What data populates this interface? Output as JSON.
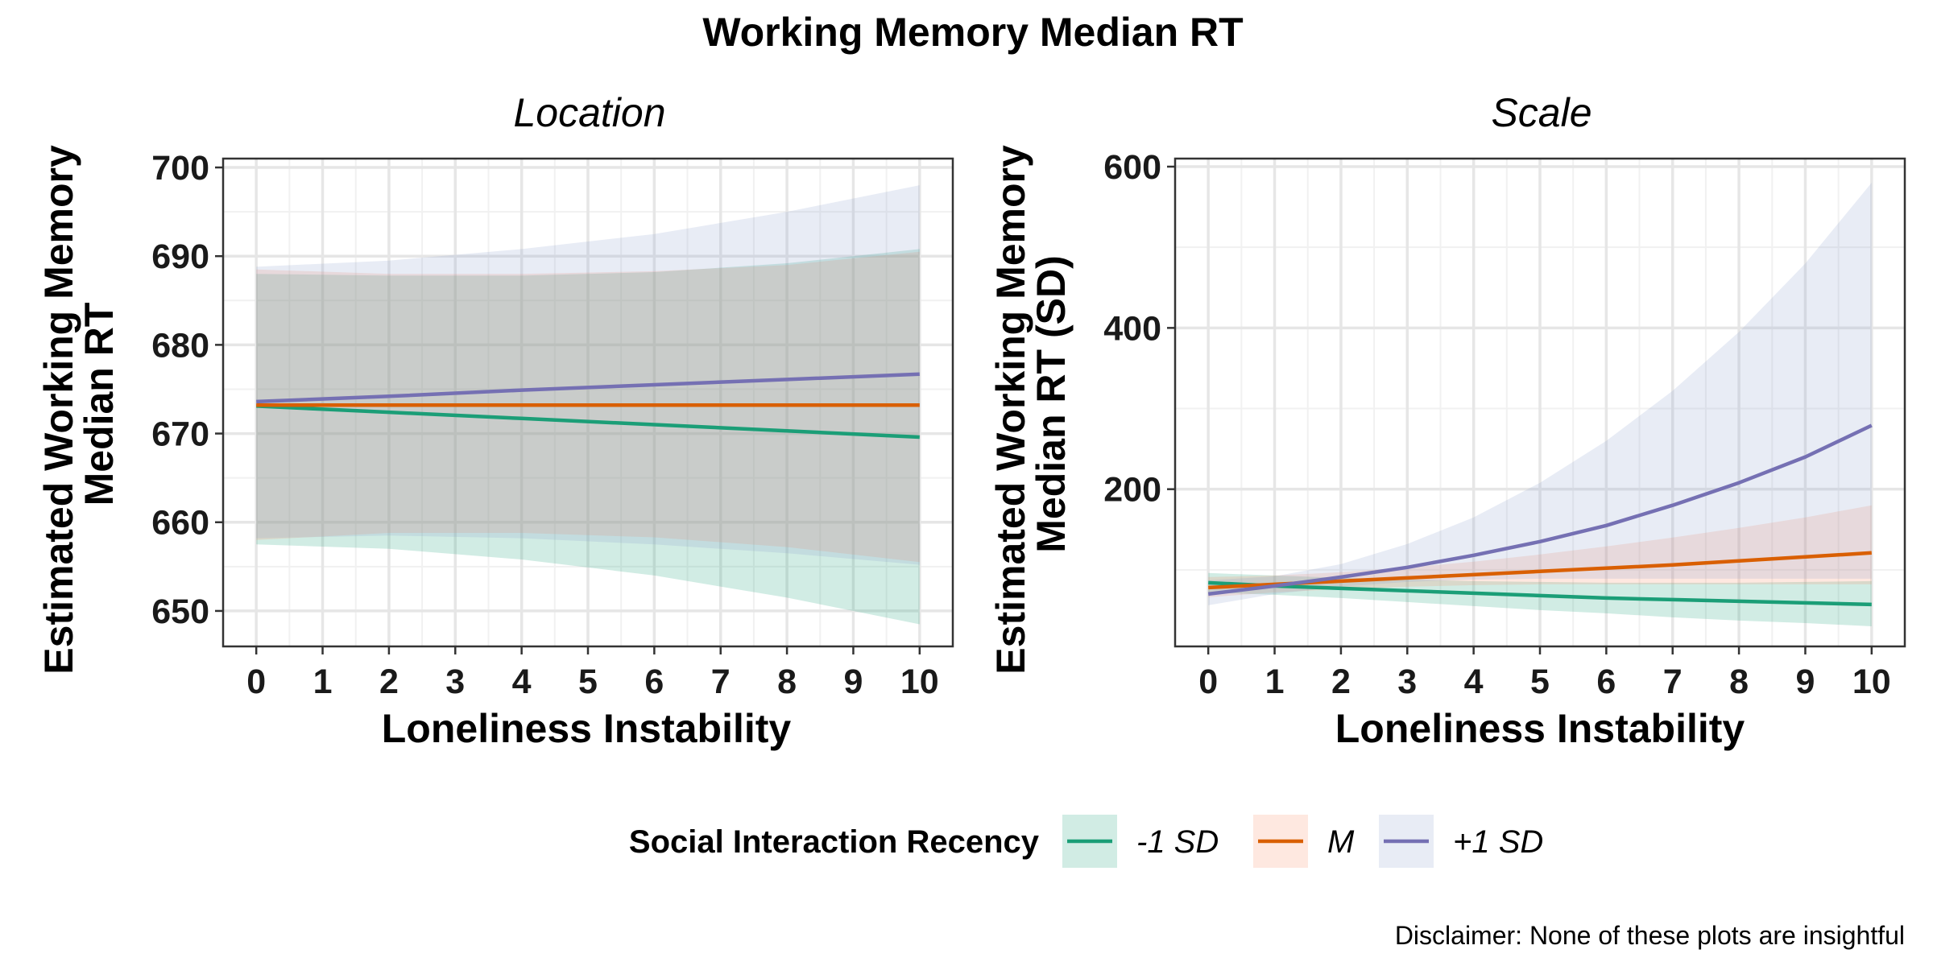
{
  "figure": {
    "title": "Working Memory Median RT",
    "caption": "Disclaimer: None of these plots are insightful"
  },
  "legend": {
    "title": "Social Interaction Recency",
    "position": "bottom"
  },
  "chart_data": [
    {
      "type": "line",
      "panel": "Location",
      "xlabel": "Loneliness Instability",
      "ylabel_lines": [
        "Estimated Working Memory",
        "Median RT"
      ],
      "xlim": [
        -0.5,
        10.5
      ],
      "ylim": [
        646,
        701
      ],
      "x_ticks": [
        0,
        1,
        2,
        3,
        4,
        5,
        6,
        7,
        8,
        9,
        10
      ],
      "y_ticks": [
        650,
        660,
        670,
        680,
        690,
        700
      ],
      "y_minor": [
        655,
        665,
        675,
        685,
        695
      ],
      "grid": true,
      "series": [
        {
          "name": "-1 SD",
          "color": "#1b9e77",
          "fill": "#1b9e77",
          "x": [
            0,
            2,
            4,
            6,
            8,
            10
          ],
          "y": [
            673.1,
            672.4,
            671.7,
            671.0,
            670.3,
            669.6
          ],
          "lower": [
            657.5,
            657.0,
            655.8,
            654.0,
            651.5,
            648.5
          ],
          "upper": [
            688.0,
            687.8,
            687.8,
            688.2,
            689.2,
            690.8
          ]
        },
        {
          "name": "M",
          "color": "#d95f02",
          "fill": "#fc8d62",
          "x": [
            0,
            2,
            4,
            6,
            8,
            10
          ],
          "y": [
            673.2,
            673.2,
            673.2,
            673.2,
            673.2,
            673.2
          ],
          "lower": [
            658.0,
            658.8,
            658.8,
            658.3,
            657.2,
            655.5
          ],
          "upper": [
            688.5,
            688.0,
            688.0,
            688.3,
            689.0,
            690.5
          ]
        },
        {
          "name": "+1 SD",
          "color": "#7570b3",
          "fill": "#8da0cb",
          "x": [
            0,
            2,
            4,
            6,
            8,
            10
          ],
          "y": [
            673.6,
            674.2,
            674.9,
            675.5,
            676.1,
            676.7
          ],
          "lower": [
            658.2,
            658.5,
            658.2,
            657.5,
            656.5,
            655.2
          ],
          "upper": [
            688.8,
            689.5,
            690.8,
            692.5,
            695.0,
            698.0
          ]
        }
      ]
    },
    {
      "type": "line",
      "panel": "Scale",
      "xlabel": "Loneliness Instability",
      "ylabel_lines": [
        "Estimated Working Memory",
        "Median RT (SD)"
      ],
      "xlim": [
        -0.5,
        10.5
      ],
      "ylim": [
        5,
        610
      ],
      "x_ticks": [
        0,
        1,
        2,
        3,
        4,
        5,
        6,
        7,
        8,
        9,
        10
      ],
      "y_ticks": [
        200,
        400,
        600
      ],
      "y_minor": [
        100,
        300,
        500
      ],
      "grid": true,
      "series": [
        {
          "name": "-1 SD",
          "color": "#1b9e77",
          "fill": "#1b9e77",
          "x": [
            0,
            1,
            2,
            3,
            4,
            5,
            6,
            7,
            8,
            9,
            10
          ],
          "y": [
            84,
            80,
            77,
            74,
            71,
            68,
            65,
            63,
            61,
            59,
            57
          ],
          "lower": [
            72,
            69,
            65,
            60,
            55,
            50,
            46,
            41,
            37,
            34,
            30
          ],
          "upper": [
            96,
            93,
            90,
            88,
            86,
            85,
            84,
            84,
            84,
            85,
            86
          ]
        },
        {
          "name": "M",
          "color": "#d95f02",
          "fill": "#fc8d62",
          "x": [
            0,
            1,
            2,
            3,
            4,
            5,
            6,
            7,
            8,
            9,
            10
          ],
          "y": [
            78,
            82,
            86,
            90,
            94,
            98,
            102,
            106,
            111,
            116,
            121
          ],
          "lower": [
            66,
            72,
            76,
            79,
            81,
            82,
            82,
            82,
            82,
            82,
            82
          ],
          "upper": [
            91,
            93,
            97,
            103,
            110,
            119,
            129,
            140,
            152,
            165,
            180
          ]
        },
        {
          "name": "+1 SD",
          "color": "#7570b3",
          "fill": "#8da0cb",
          "x": [
            0,
            1,
            2,
            3,
            4,
            5,
            6,
            7,
            8,
            9,
            10
          ],
          "y": [
            70,
            80,
            91,
            103,
            118,
            135,
            155,
            180,
            208,
            240,
            279
          ],
          "lower": [
            56,
            70,
            79,
            85,
            88,
            89,
            89,
            89,
            89,
            89,
            89
          ],
          "upper": [
            87,
            92,
            107,
            132,
            165,
            208,
            260,
            322,
            395,
            480,
            580
          ]
        }
      ]
    }
  ]
}
